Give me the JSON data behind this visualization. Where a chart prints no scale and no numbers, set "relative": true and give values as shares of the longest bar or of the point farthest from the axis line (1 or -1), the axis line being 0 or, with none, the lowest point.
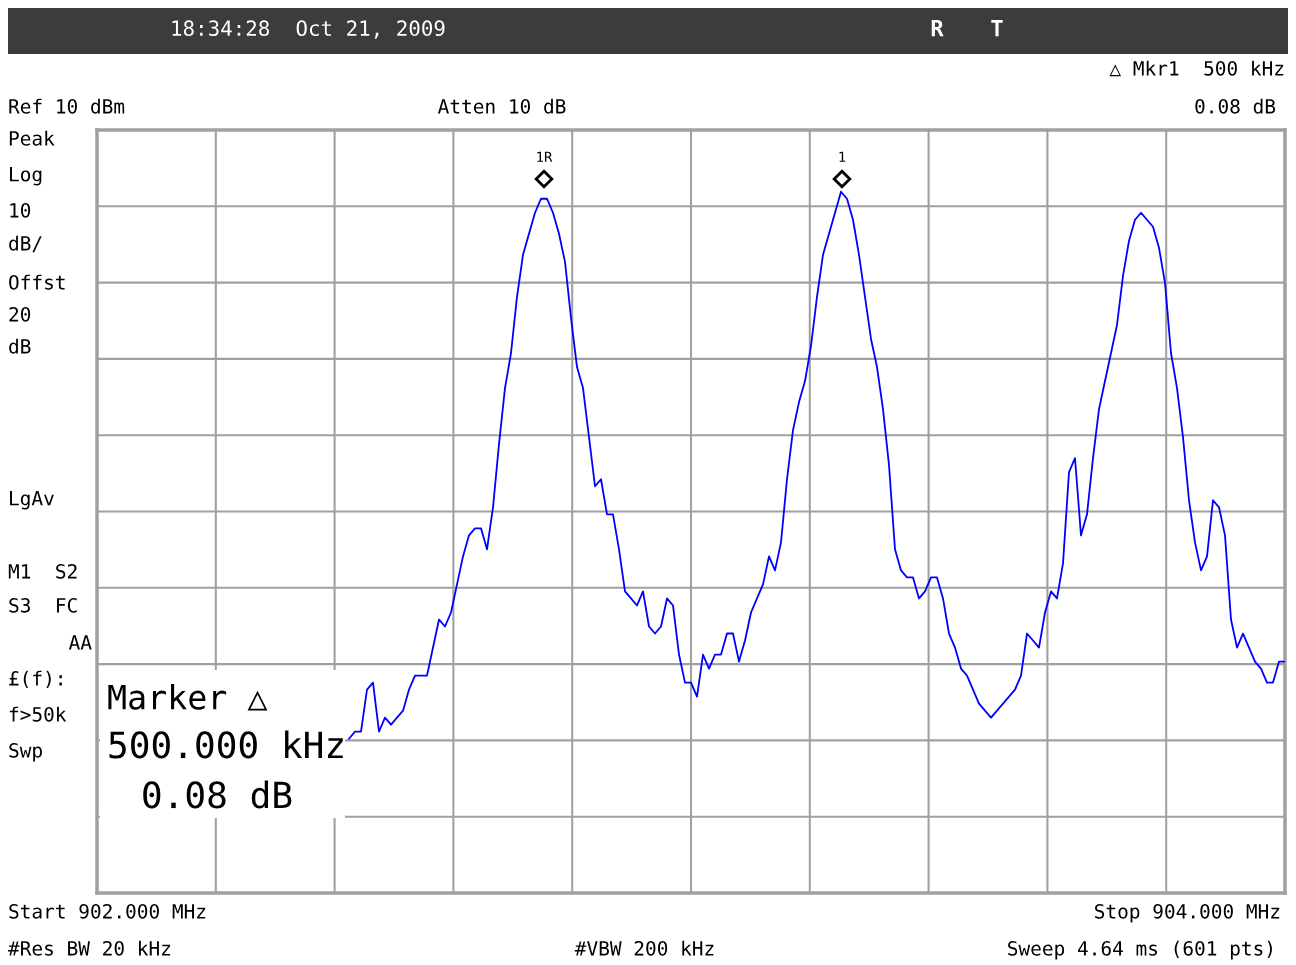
{
  "chart_data": {
    "type": "line",
    "relative": true,
    "annotations": [
      "18:34:28  Oct 21, 2009",
      "R",
      "T",
      "△ Mkr1  500 kHz",
      "Ref 10 dBm",
      "Atten 10 dB",
      "0.08 dB",
      "Peak",
      "Log",
      "10",
      "dB/",
      "Offst",
      "20",
      "dB",
      "LgAv",
      "M1  S2",
      "S3  FC",
      "AA",
      "£(f):",
      "f>50k",
      "Swp",
      "Marker △",
      "500.000 kHz",
      "0.08 dB",
      "Start 902.000 MHz",
      "Stop 904.000 MHz",
      "#Res BW 20 kHz",
      "#VBW 200 kHz",
      "Sweep 4.64 ms (601 pts)",
      "1R",
      "1"
    ],
    "categories": [
      null,
      null,
      null,
      null,
      null,
      null,
      null,
      null,
      null,
      null,
      null,
      null,
      null,
      null,
      null,
      null,
      null,
      null,
      null,
      null,
      null,
      null,
      null,
      null,
      null,
      null,
      null,
      null,
      null,
      null,
      null,
      null,
      null,
      null,
      null,
      null,
      null,
      null,
      null,
      null,
      null,
      null,
      null,
      null,
      null,
      null,
      null,
      null,
      null,
      null,
      null,
      null,
      null,
      null,
      null,
      null,
      null,
      null,
      null,
      null,
      null,
      null,
      null,
      null,
      null,
      null,
      null,
      null,
      null,
      null,
      null,
      null,
      null,
      null,
      null,
      null,
      null,
      null,
      null,
      null,
      null,
      null,
      null,
      null,
      null,
      null,
      null,
      null,
      null,
      null,
      null,
      null,
      null,
      null,
      null,
      null,
      null,
      null,
      null,
      null,
      null,
      null,
      null,
      null,
      null,
      null,
      null,
      null,
      null,
      null,
      null,
      null,
      null,
      null,
      null,
      null,
      null,
      null,
      null,
      null,
      null,
      null,
      null,
      null,
      null,
      null,
      null,
      null,
      null,
      null,
      null,
      null,
      null,
      null,
      null,
      null,
      null,
      null,
      null,
      null,
      null,
      null,
      null,
      null,
      null,
      null,
      null,
      null,
      null,
      null,
      null,
      null,
      null,
      null,
      null,
      null,
      null,
      null,
      null,
      null,
      null,
      null,
      null,
      null,
      null,
      null,
      null,
      null,
      null,
      null,
      null,
      null,
      null,
      null,
      null,
      null,
      null,
      null,
      null,
      null,
      null,
      null,
      null,
      null,
      null,
      null,
      null,
      null,
      null,
      null,
      null,
      null,
      null,
      null,
      null,
      null,
      null,
      null,
      null
    ],
    "grid": true,
    "marker": "none",
    "line_style": "solid",
    "series": [
      {
        "color": "#0000ff",
        "values": [
          null,
          null,
          null,
          null,
          null,
          null,
          null,
          null,
          null,
          null,
          null,
          null,
          null,
          null,
          null,
          null,
          null,
          null,
          null,
          null,
          null,
          null,
          null,
          null,
          null,
          null,
          null,
          null,
          null,
          null,
          null,
          null,
          null,
          null,
          null,
          null,
          null,
          null,
          null,
          null,
          null,
          null,
          0.22,
          0.23,
          0.23,
          0.29,
          0.3,
          0.23,
          0.25,
          0.24,
          0.25,
          0.26,
          0.29,
          0.31,
          0.31,
          0.31,
          0.35,
          0.39,
          0.38,
          0.4,
          0.44,
          0.48,
          0.51,
          0.52,
          0.52,
          0.49,
          0.55,
          0.64,
          0.72,
          0.77,
          0.85,
          0.91,
          0.94,
          0.97,
          0.99,
          0.99,
          0.97,
          0.94,
          0.9,
          0.82,
          0.75,
          0.72,
          0.65,
          0.58,
          0.59,
          0.54,
          0.54,
          0.49,
          0.43,
          0.42,
          0.41,
          0.43,
          0.38,
          0.37,
          0.38,
          0.42,
          0.41,
          0.34,
          0.3,
          0.3,
          0.28,
          0.34,
          0.32,
          0.34,
          0.34,
          0.37,
          0.37,
          0.33,
          0.36,
          0.4,
          0.42,
          0.44,
          0.48,
          0.46,
          0.5,
          0.59,
          0.66,
          0.7,
          0.73,
          0.78,
          0.85,
          0.91,
          0.94,
          0.97,
          1.0,
          0.99,
          0.96,
          0.91,
          0.85,
          0.79,
          0.75,
          0.69,
          0.61,
          0.49,
          0.46,
          0.45,
          0.45,
          0.42,
          0.43,
          0.45,
          0.45,
          0.42,
          0.37,
          0.35,
          0.32,
          0.31,
          0.29,
          0.27,
          0.26,
          0.25,
          0.26,
          0.27,
          0.28,
          0.29,
          0.31,
          0.37,
          0.36,
          0.35,
          0.4,
          0.43,
          0.42,
          0.47,
          0.6,
          0.62,
          0.51,
          0.54,
          0.62,
          0.69,
          0.73,
          0.77,
          0.81,
          0.88,
          0.93,
          0.96,
          0.97,
          0.96,
          0.95,
          0.92,
          0.87,
          0.77,
          0.72,
          0.65,
          0.56,
          0.5,
          0.46,
          0.48,
          0.56,
          0.55,
          0.51,
          0.39,
          0.35,
          0.37,
          0.35,
          0.33,
          0.32,
          0.3,
          0.3,
          0.33,
          0.33
        ]
      }
    ]
  }
}
